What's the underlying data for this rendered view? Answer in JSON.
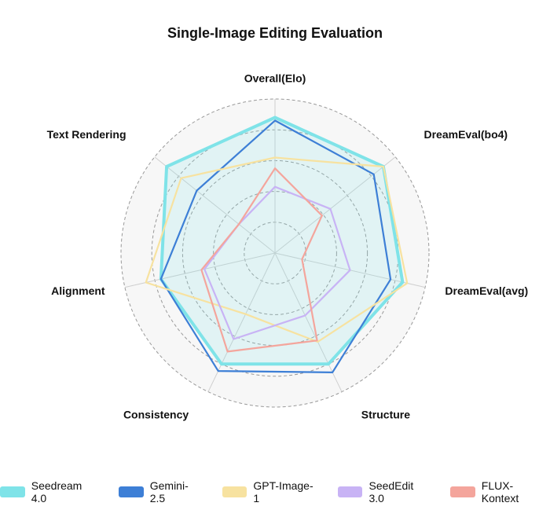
{
  "chart_data": {
    "type": "radar",
    "title": "Single-Image Editing Evaluation",
    "axes": [
      "Overall(Elo)",
      "DreamEval(bo4)",
      "DreamEval(avg)",
      "Structure",
      "Consistency",
      "Alignment",
      "Text Rendering"
    ],
    "range": [
      0,
      100
    ],
    "grid": true,
    "legend_position": "bottom",
    "series": [
      {
        "name": "Seedream 4.0",
        "color": "#7fe3e8",
        "fill": true,
        "values": [
          88,
          90,
          85,
          80,
          80,
          76,
          90
        ]
      },
      {
        "name": "Gemini-2.5",
        "color": "#3d7fd6",
        "fill": false,
        "values": [
          86,
          82,
          77,
          86,
          85,
          76,
          65
        ]
      },
      {
        "name": "GPT-Image-1",
        "color": "#f7e2a0",
        "fill": false,
        "values": [
          62,
          90,
          88,
          64,
          44,
          86,
          78
        ]
      },
      {
        "name": "SeedEdit 3.0",
        "color": "#c8b3f5",
        "fill": false,
        "values": [
          43,
          46,
          50,
          45,
          62,
          47,
          30
        ]
      },
      {
        "name": "FLUX-Kontext",
        "color": "#f4a59c",
        "fill": false,
        "values": [
          55,
          39,
          18,
          63,
          71,
          49,
          30
        ]
      }
    ]
  }
}
